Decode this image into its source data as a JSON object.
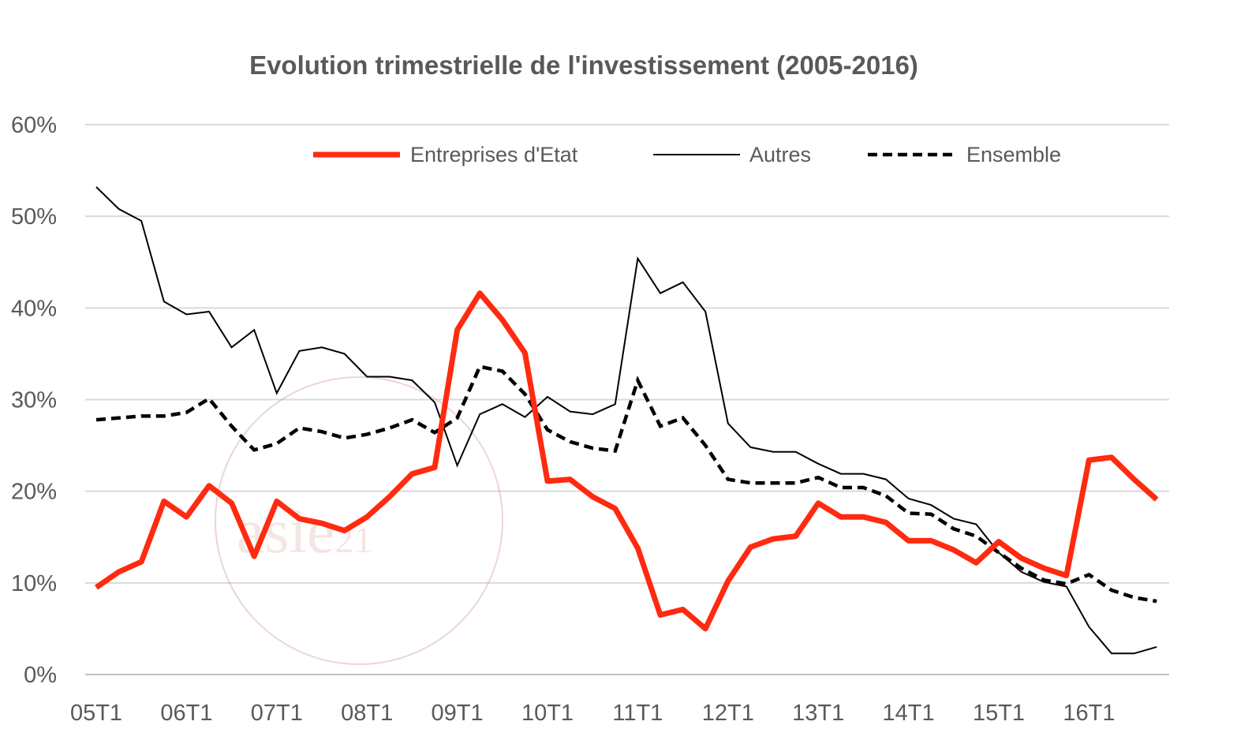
{
  "chart_data": {
    "type": "line",
    "title": "Evolution trimestrielle de l'investissement (2005-2016)",
    "xlabel": "",
    "ylabel": "",
    "ylim": [
      0,
      60
    ],
    "yticks": [
      "0%",
      "10%",
      "20%",
      "30%",
      "40%",
      "50%",
      "60%"
    ],
    "xtick_labels": [
      "05T1",
      "06T1",
      "07T1",
      "08T1",
      "09T1",
      "10T1",
      "11T1",
      "12T1",
      "13T1",
      "14T1",
      "15T1",
      "16T1"
    ],
    "grid": true,
    "legend_position": "top",
    "watermark": "asie21",
    "series": [
      {
        "name": "Entreprises d'Etat",
        "color": "#ff2a10",
        "style": "thick",
        "values": [
          9.5,
          11.2,
          12.3,
          18.9,
          17.2,
          20.6,
          18.7,
          12.9,
          18.9,
          17.0,
          16.5,
          15.7,
          17.2,
          19.4,
          21.9,
          22.6,
          37.6,
          41.6,
          38.7,
          35.1,
          21.1,
          21.3,
          19.4,
          18.1,
          13.8,
          6.5,
          7.1,
          5.0,
          10.2,
          13.9,
          14.8,
          15.1,
          18.7,
          17.2,
          17.2,
          16.6,
          14.6,
          14.6,
          13.6,
          12.2,
          14.5,
          12.7,
          11.6,
          10.8,
          23.4,
          23.7,
          21.3,
          19.1
        ]
      },
      {
        "name": "Autres",
        "color": "#000000",
        "style": "thin",
        "values": [
          53.2,
          50.8,
          49.5,
          40.7,
          39.3,
          39.6,
          35.7,
          37.6,
          30.7,
          35.3,
          35.7,
          35.0,
          32.5,
          32.5,
          32.1,
          29.7,
          22.8,
          28.4,
          29.5,
          28.1,
          30.3,
          28.7,
          28.4,
          29.5,
          45.4,
          41.6,
          42.8,
          39.6,
          27.4,
          24.8,
          24.3,
          24.3,
          23.0,
          21.9,
          21.9,
          21.3,
          19.2,
          18.5,
          17.0,
          16.4,
          13.3,
          11.2,
          10.1,
          9.6,
          5.2,
          2.3,
          2.3,
          3.0
        ]
      },
      {
        "name": "Ensemble",
        "color": "#000000",
        "style": "dashed",
        "values": [
          27.8,
          28.0,
          28.2,
          28.2,
          28.6,
          30.1,
          27.1,
          24.5,
          25.2,
          26.9,
          26.5,
          25.8,
          26.2,
          26.9,
          27.8,
          26.4,
          28.0,
          33.6,
          33.1,
          30.6,
          26.7,
          25.4,
          24.7,
          24.4,
          32.1,
          27.1,
          28.0,
          25.0,
          21.3,
          20.9,
          20.9,
          20.9,
          21.5,
          20.4,
          20.4,
          19.5,
          17.6,
          17.5,
          15.9,
          15.1,
          13.3,
          11.6,
          10.3,
          9.9,
          10.9,
          9.2,
          8.4,
          8.0
        ]
      }
    ]
  }
}
